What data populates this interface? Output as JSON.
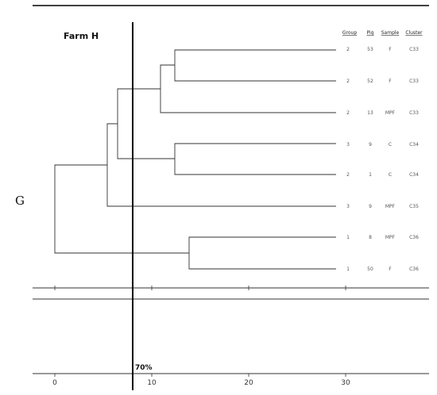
{
  "panel_label": "G",
  "title": "Farm H",
  "cutoff_label": "70%",
  "columns": {
    "group": "Group",
    "pig": "Pig",
    "sample": "Sample",
    "cluster": "Cluster"
  },
  "axis": {
    "ticks": [
      "0",
      "10",
      "20",
      "30"
    ]
  },
  "leaves": [
    {
      "group": "2",
      "pig": "53",
      "sample": "F",
      "cluster": "C33"
    },
    {
      "group": "2",
      "pig": "52",
      "sample": "F",
      "cluster": "C33"
    },
    {
      "group": "2",
      "pig": "13",
      "sample": "MPF",
      "cluster": "C33"
    },
    {
      "group": "3",
      "pig": "9",
      "sample": "C",
      "cluster": "C34"
    },
    {
      "group": "2",
      "pig": "1",
      "sample": "C",
      "cluster": "C34"
    },
    {
      "group": "3",
      "pig": "9",
      "sample": "MPF",
      "cluster": "C35"
    },
    {
      "group": "1",
      "pig": "8",
      "sample": "MPF",
      "cluster": "C36"
    },
    {
      "group": "1",
      "pig": "50",
      "sample": "F",
      "cluster": "C36"
    }
  ],
  "colors": {
    "lines": "#333333",
    "cutoff": "#000000"
  }
}
